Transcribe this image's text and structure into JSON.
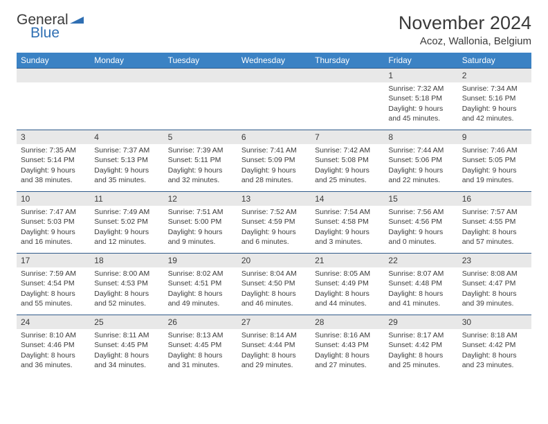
{
  "colors": {
    "header_bar": "#3b82c4",
    "header_text": "#ffffff",
    "row_border": "#2f5a8a",
    "day_band": "#e8e8e8",
    "text": "#3a3a3a",
    "logo_blue": "#2f6fb3",
    "background": "#ffffff"
  },
  "typography": {
    "month_fontsize": 27,
    "location_fontsize": 15,
    "weekday_fontsize": 12,
    "body_fontsize": 10.5
  },
  "logo": {
    "line1": "General",
    "line2": "Blue"
  },
  "title": {
    "month": "November 2024",
    "location": "Acoz, Wallonia, Belgium"
  },
  "weekdays": [
    "Sunday",
    "Monday",
    "Tuesday",
    "Wednesday",
    "Thursday",
    "Friday",
    "Saturday"
  ],
  "weeks": [
    [
      {
        "n": "",
        "sunrise": "",
        "sunset": "",
        "daylight": ""
      },
      {
        "n": "",
        "sunrise": "",
        "sunset": "",
        "daylight": ""
      },
      {
        "n": "",
        "sunrise": "",
        "sunset": "",
        "daylight": ""
      },
      {
        "n": "",
        "sunrise": "",
        "sunset": "",
        "daylight": ""
      },
      {
        "n": "",
        "sunrise": "",
        "sunset": "",
        "daylight": ""
      },
      {
        "n": "1",
        "sunrise": "Sunrise: 7:32 AM",
        "sunset": "Sunset: 5:18 PM",
        "daylight": "Daylight: 9 hours and 45 minutes."
      },
      {
        "n": "2",
        "sunrise": "Sunrise: 7:34 AM",
        "sunset": "Sunset: 5:16 PM",
        "daylight": "Daylight: 9 hours and 42 minutes."
      }
    ],
    [
      {
        "n": "3",
        "sunrise": "Sunrise: 7:35 AM",
        "sunset": "Sunset: 5:14 PM",
        "daylight": "Daylight: 9 hours and 38 minutes."
      },
      {
        "n": "4",
        "sunrise": "Sunrise: 7:37 AM",
        "sunset": "Sunset: 5:13 PM",
        "daylight": "Daylight: 9 hours and 35 minutes."
      },
      {
        "n": "5",
        "sunrise": "Sunrise: 7:39 AM",
        "sunset": "Sunset: 5:11 PM",
        "daylight": "Daylight: 9 hours and 32 minutes."
      },
      {
        "n": "6",
        "sunrise": "Sunrise: 7:41 AM",
        "sunset": "Sunset: 5:09 PM",
        "daylight": "Daylight: 9 hours and 28 minutes."
      },
      {
        "n": "7",
        "sunrise": "Sunrise: 7:42 AM",
        "sunset": "Sunset: 5:08 PM",
        "daylight": "Daylight: 9 hours and 25 minutes."
      },
      {
        "n": "8",
        "sunrise": "Sunrise: 7:44 AM",
        "sunset": "Sunset: 5:06 PM",
        "daylight": "Daylight: 9 hours and 22 minutes."
      },
      {
        "n": "9",
        "sunrise": "Sunrise: 7:46 AM",
        "sunset": "Sunset: 5:05 PM",
        "daylight": "Daylight: 9 hours and 19 minutes."
      }
    ],
    [
      {
        "n": "10",
        "sunrise": "Sunrise: 7:47 AM",
        "sunset": "Sunset: 5:03 PM",
        "daylight": "Daylight: 9 hours and 16 minutes."
      },
      {
        "n": "11",
        "sunrise": "Sunrise: 7:49 AM",
        "sunset": "Sunset: 5:02 PM",
        "daylight": "Daylight: 9 hours and 12 minutes."
      },
      {
        "n": "12",
        "sunrise": "Sunrise: 7:51 AM",
        "sunset": "Sunset: 5:00 PM",
        "daylight": "Daylight: 9 hours and 9 minutes."
      },
      {
        "n": "13",
        "sunrise": "Sunrise: 7:52 AM",
        "sunset": "Sunset: 4:59 PM",
        "daylight": "Daylight: 9 hours and 6 minutes."
      },
      {
        "n": "14",
        "sunrise": "Sunrise: 7:54 AM",
        "sunset": "Sunset: 4:58 PM",
        "daylight": "Daylight: 9 hours and 3 minutes."
      },
      {
        "n": "15",
        "sunrise": "Sunrise: 7:56 AM",
        "sunset": "Sunset: 4:56 PM",
        "daylight": "Daylight: 9 hours and 0 minutes."
      },
      {
        "n": "16",
        "sunrise": "Sunrise: 7:57 AM",
        "sunset": "Sunset: 4:55 PM",
        "daylight": "Daylight: 8 hours and 57 minutes."
      }
    ],
    [
      {
        "n": "17",
        "sunrise": "Sunrise: 7:59 AM",
        "sunset": "Sunset: 4:54 PM",
        "daylight": "Daylight: 8 hours and 55 minutes."
      },
      {
        "n": "18",
        "sunrise": "Sunrise: 8:00 AM",
        "sunset": "Sunset: 4:53 PM",
        "daylight": "Daylight: 8 hours and 52 minutes."
      },
      {
        "n": "19",
        "sunrise": "Sunrise: 8:02 AM",
        "sunset": "Sunset: 4:51 PM",
        "daylight": "Daylight: 8 hours and 49 minutes."
      },
      {
        "n": "20",
        "sunrise": "Sunrise: 8:04 AM",
        "sunset": "Sunset: 4:50 PM",
        "daylight": "Daylight: 8 hours and 46 minutes."
      },
      {
        "n": "21",
        "sunrise": "Sunrise: 8:05 AM",
        "sunset": "Sunset: 4:49 PM",
        "daylight": "Daylight: 8 hours and 44 minutes."
      },
      {
        "n": "22",
        "sunrise": "Sunrise: 8:07 AM",
        "sunset": "Sunset: 4:48 PM",
        "daylight": "Daylight: 8 hours and 41 minutes."
      },
      {
        "n": "23",
        "sunrise": "Sunrise: 8:08 AM",
        "sunset": "Sunset: 4:47 PM",
        "daylight": "Daylight: 8 hours and 39 minutes."
      }
    ],
    [
      {
        "n": "24",
        "sunrise": "Sunrise: 8:10 AM",
        "sunset": "Sunset: 4:46 PM",
        "daylight": "Daylight: 8 hours and 36 minutes."
      },
      {
        "n": "25",
        "sunrise": "Sunrise: 8:11 AM",
        "sunset": "Sunset: 4:45 PM",
        "daylight": "Daylight: 8 hours and 34 minutes."
      },
      {
        "n": "26",
        "sunrise": "Sunrise: 8:13 AM",
        "sunset": "Sunset: 4:45 PM",
        "daylight": "Daylight: 8 hours and 31 minutes."
      },
      {
        "n": "27",
        "sunrise": "Sunrise: 8:14 AM",
        "sunset": "Sunset: 4:44 PM",
        "daylight": "Daylight: 8 hours and 29 minutes."
      },
      {
        "n": "28",
        "sunrise": "Sunrise: 8:16 AM",
        "sunset": "Sunset: 4:43 PM",
        "daylight": "Daylight: 8 hours and 27 minutes."
      },
      {
        "n": "29",
        "sunrise": "Sunrise: 8:17 AM",
        "sunset": "Sunset: 4:42 PM",
        "daylight": "Daylight: 8 hours and 25 minutes."
      },
      {
        "n": "30",
        "sunrise": "Sunrise: 8:18 AM",
        "sunset": "Sunset: 4:42 PM",
        "daylight": "Daylight: 8 hours and 23 minutes."
      }
    ]
  ]
}
